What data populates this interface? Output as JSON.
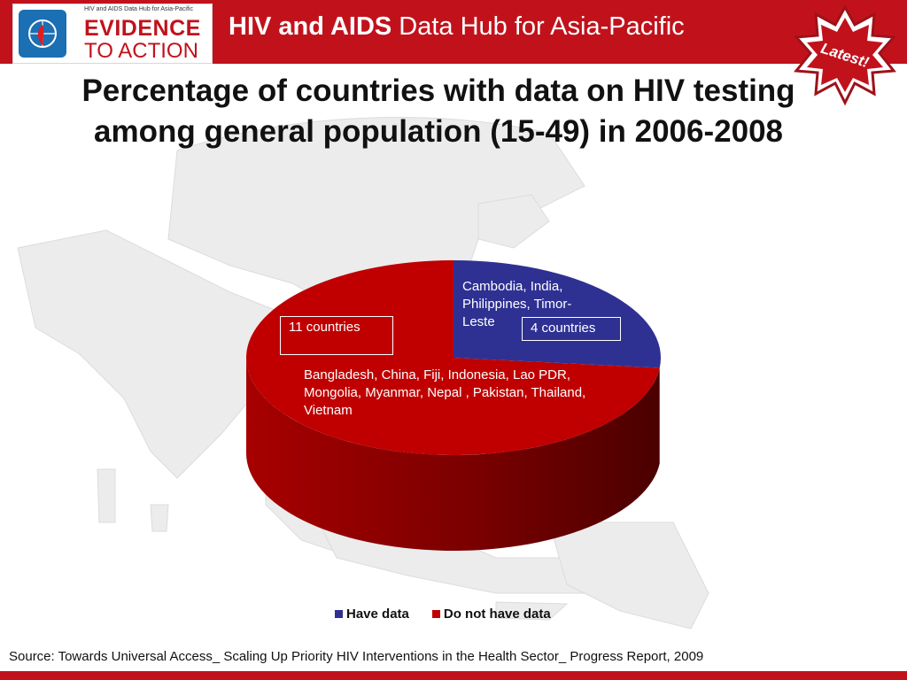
{
  "header": {
    "logo_subtitle": "HIV and AIDS Data Hub for Asia-Pacific",
    "logo_line1": "EVIDENCE",
    "logo_line2": "TO ACTION",
    "title_bold": "HIV and AIDS",
    "title_rest": " Data Hub for Asia-Pacific",
    "badge": "Latest!"
  },
  "colors": {
    "brand_red": "#c1121c",
    "have_data": "#2e3192",
    "no_data": "#c00000"
  },
  "chart_data": {
    "type": "pie",
    "title": "Percentage of countries with data on HIV testing among general population (15-49) in 2006-2008",
    "series": [
      {
        "name": "Have data",
        "value": 4,
        "label": "4 countries",
        "countries": [
          "Cambodia, India,",
          "Philippines, Timor-",
          "Leste"
        ]
      },
      {
        "name": "Do not have data",
        "value": 11,
        "label": "11 countries",
        "countries": [
          "Bangladesh,  China, Fiji,  Indonesia, Lao PDR,",
          "Mongolia,  Myanmar, Nepal , Pakistan, Thailand,",
          "Vietnam"
        ]
      }
    ],
    "legend": [
      "Have data",
      "Do not have data"
    ],
    "legend_position": "bottom"
  },
  "source": "Source: Towards Universal  Access_ Scaling Up Priority HIV Interventions in the Health Sector_ Progress Report, 2009"
}
